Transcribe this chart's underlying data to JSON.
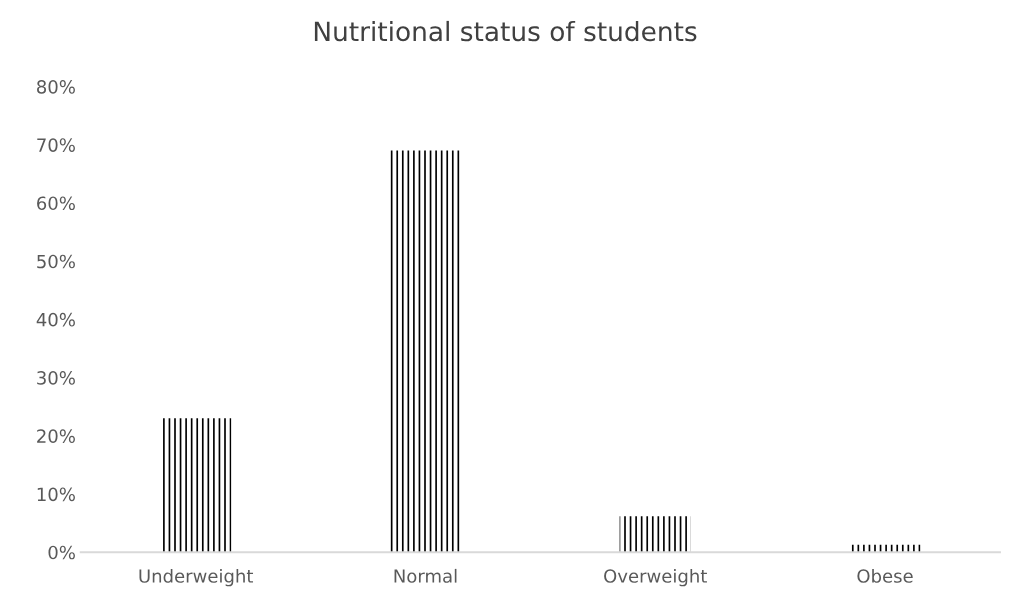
{
  "chart_data": {
    "type": "bar",
    "title": "Nutritional status of students",
    "categories": [
      "Underweight",
      "Normal",
      "Overweight",
      "Obese"
    ],
    "values": [
      23,
      69,
      6.2,
      1.3
    ],
    "color": "#000000",
    "ylim": [
      0,
      80
    ],
    "yticks": [
      {
        "value": 0,
        "label": "0%"
      },
      {
        "value": 10,
        "label": "10%"
      },
      {
        "value": 20,
        "label": "20%"
      },
      {
        "value": 30,
        "label": "30%"
      },
      {
        "value": 40,
        "label": "40%"
      },
      {
        "value": 50,
        "label": "50%"
      },
      {
        "value": 60,
        "label": "60%"
      },
      {
        "value": 70,
        "label": "70%"
      },
      {
        "value": 80,
        "label": "80%"
      }
    ],
    "grid": false
  }
}
